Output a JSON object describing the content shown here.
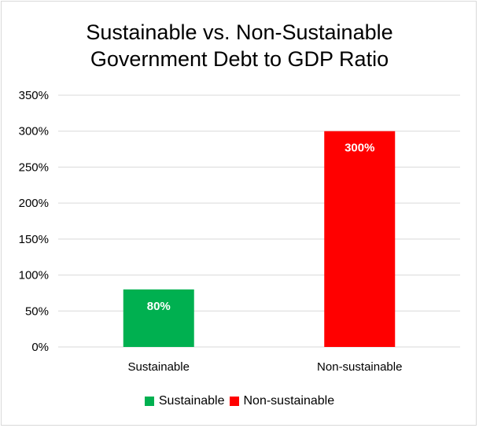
{
  "chart_data": {
    "type": "bar",
    "title_lines": [
      "Sustainable vs. Non-Sustainable",
      "Government Debt to GDP Ratio"
    ],
    "categories": [
      "Sustainable",
      "Non-sustainable"
    ],
    "values": [
      80,
      300
    ],
    "value_labels": [
      "80%",
      "300%"
    ],
    "colors": [
      "#00b050",
      "#ff0000"
    ],
    "ylim": [
      0,
      350
    ],
    "yticks": [
      0,
      50,
      100,
      150,
      200,
      250,
      300,
      350
    ],
    "ytick_labels": [
      "0%",
      "50%",
      "100%",
      "150%",
      "200%",
      "250%",
      "300%",
      "350%"
    ],
    "xlabel": "",
    "ylabel": "",
    "grid": true,
    "gridline_color": "#d9d9d9",
    "legend_position": "bottom",
    "legend": [
      {
        "label": "Sustainable",
        "color": "#00b050"
      },
      {
        "label": "Non-sustainable",
        "color": "#ff0000"
      }
    ]
  }
}
